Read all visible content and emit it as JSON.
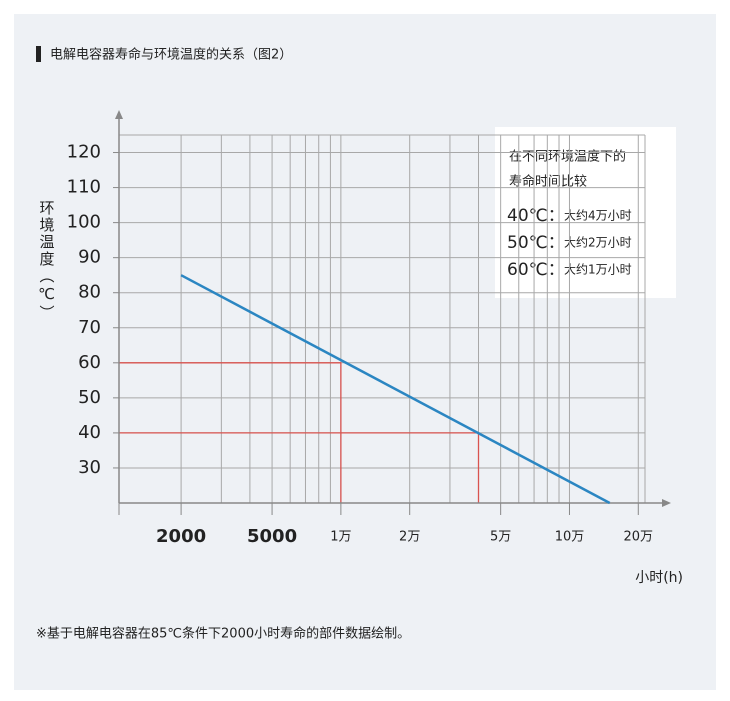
{
  "chart_data": {
    "type": "line",
    "title": "电解电容器寿命与环境温度的关系（图2）",
    "ylabel": "环境温度（℃）",
    "xlabel": "小时(h)",
    "x": [
      2000,
      150000
    ],
    "series": [
      {
        "name": "寿命",
        "color": "#2b86c2",
        "values": [
          85,
          20
        ]
      }
    ],
    "xlog": true,
    "xlim": [
      1070,
      214000
    ],
    "xticks": [
      2000,
      5000,
      {
        "value": 10000,
        "label": "1万"
      },
      {
        "value": 20000,
        "label": "2万"
      },
      {
        "value": 50000,
        "label": "5万"
      },
      {
        "value": 100000,
        "label": "10万"
      },
      {
        "value": 200000,
        "label": "20万"
      }
    ],
    "xminor": [
      3000,
      4000,
      6000,
      7000,
      8000,
      9000,
      30000,
      40000,
      60000,
      70000,
      80000,
      90000
    ],
    "ylim": [
      20,
      125
    ],
    "yticks": [
      30,
      40,
      50,
      60,
      70,
      80,
      90,
      100,
      110,
      120
    ],
    "grid": true,
    "reference_lines": [
      {
        "y": 60,
        "x": 10000
      },
      {
        "y": 40,
        "x": 40000
      }
    ],
    "reference_color": "#d9534f",
    "note_box": {
      "lines": [
        "在不同环境温度下的",
        "寿命时间比较"
      ],
      "rows": [
        {
          "temp": "40℃：",
          "text": "大约4万小时"
        },
        {
          "temp": "50℃：",
          "text": "大约2万小时"
        },
        {
          "temp": "60℃：",
          "text": "大约1万小时"
        }
      ]
    },
    "footnote": "※基于电解电容器在85℃条件下2000小时寿命的部件数据绘制。"
  }
}
